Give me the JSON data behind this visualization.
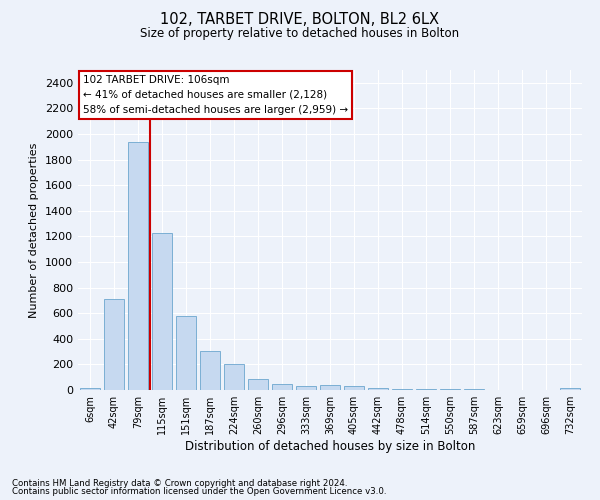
{
  "title1": "102, TARBET DRIVE, BOLTON, BL2 6LX",
  "title2": "Size of property relative to detached houses in Bolton",
  "xlabel": "Distribution of detached houses by size in Bolton",
  "ylabel": "Number of detached properties",
  "bin_labels": [
    "6sqm",
    "42sqm",
    "79sqm",
    "115sqm",
    "151sqm",
    "187sqm",
    "224sqm",
    "260sqm",
    "296sqm",
    "333sqm",
    "369sqm",
    "405sqm",
    "442sqm",
    "478sqm",
    "514sqm",
    "550sqm",
    "587sqm",
    "623sqm",
    "659sqm",
    "696sqm",
    "732sqm"
  ],
  "bar_values": [
    15,
    710,
    1940,
    1230,
    575,
    305,
    200,
    85,
    50,
    35,
    40,
    35,
    18,
    5,
    5,
    5,
    5,
    2,
    2,
    2,
    15
  ],
  "bar_color": "#c6d9f0",
  "bar_edge_color": "#7bafd4",
  "annotation_text": "102 TARBET DRIVE: 106sqm\n← 41% of detached houses are smaller (2,128)\n58% of semi-detached houses are larger (2,959) →",
  "annotation_box_color": "#ffffff",
  "annotation_box_edge": "#cc0000",
  "redline_color": "#cc0000",
  "ylim": [
    0,
    2500
  ],
  "yticks": [
    0,
    200,
    400,
    600,
    800,
    1000,
    1200,
    1400,
    1600,
    1800,
    2000,
    2200,
    2400
  ],
  "footnote1": "Contains HM Land Registry data © Crown copyright and database right 2024.",
  "footnote2": "Contains public sector information licensed under the Open Government Licence v3.0.",
  "bg_color": "#edf2fa",
  "grid_color": "#ffffff"
}
